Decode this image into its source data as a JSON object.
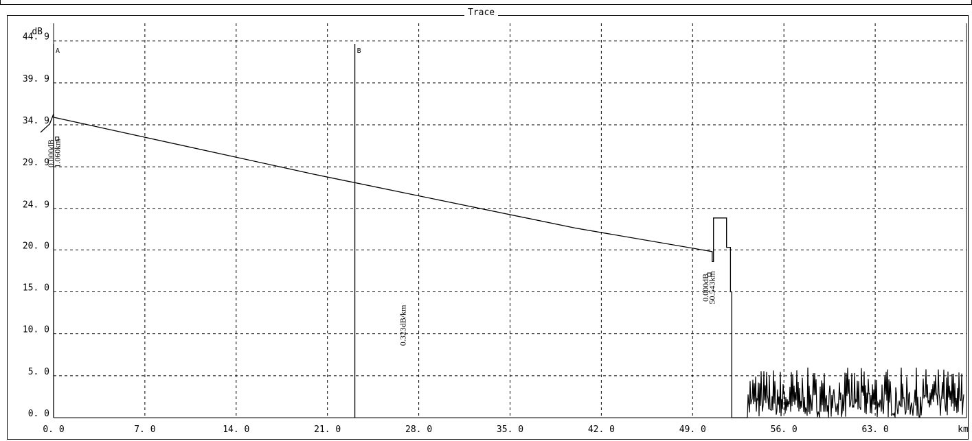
{
  "window": {
    "frame_title": "Trace"
  },
  "chart_data": {
    "type": "line",
    "title": "Trace",
    "xlabel": "km",
    "ylabel": "dB",
    "xlim": [
      0,
      70
    ],
    "ylim": [
      0,
      47
    ],
    "grid": true,
    "x_ticks": [
      "0. 0",
      "7. 0",
      "14. 0",
      "21. 0",
      "28. 0",
      "35. 0",
      "42. 0",
      "49. 0",
      "56. 0",
      "63. 0"
    ],
    "x_tick_values": [
      0,
      7,
      14,
      21,
      28,
      35,
      42,
      49,
      56,
      63
    ],
    "y_ticks": [
      "0. 0",
      "5. 0",
      "10. 0",
      "15. 0",
      "20. 0",
      "24. 9",
      "29. 9",
      "34. 9",
      "39. 9",
      "44. 9"
    ],
    "y_tick_values": [
      0,
      5,
      10,
      15,
      20,
      24.9,
      29.9,
      34.9,
      39.9,
      44.9
    ],
    "series": [
      {
        "x": [
          -1.0,
          -0.3,
          0.0,
          0.0,
          20.0,
          30.0,
          40.0,
          50.5,
          50.5,
          50.6,
          50.6,
          51.6,
          51.6,
          51.9,
          51.9,
          52.0,
          52.0
        ],
        "y": [
          34.0,
          35.0,
          36.2,
          35.8,
          29.0,
          25.8,
          22.6,
          19.8,
          18.6,
          18.6,
          23.8,
          23.8,
          20.3,
          20.3,
          15.0,
          15.0,
          0.0
        ]
      }
    ],
    "noise_range": {
      "x_start": 52.0,
      "x_end": 69.8,
      "y_min": 0.0,
      "y_max": 6.0
    },
    "markers": [
      {
        "label": "A",
        "x": 0.0
      },
      {
        "label": "B",
        "x": 23.1
      }
    ],
    "annotations": [
      {
        "id": "event1_loss",
        "text": "0.000dB",
        "x": 0.0,
        "y": 31.5
      },
      {
        "id": "event1_dist",
        "text": "1.060km",
        "x": 0.5,
        "y": 31.5
      },
      {
        "id": "slope",
        "text": "0.323dB/km",
        "x": 27.0,
        "y": 11.0
      },
      {
        "id": "event2_loss",
        "text": "0.000dB",
        "x": 50.2,
        "y": 15.5
      },
      {
        "id": "event2_dist",
        "text": "50.543km",
        "x": 50.7,
        "y": 15.5
      }
    ]
  }
}
